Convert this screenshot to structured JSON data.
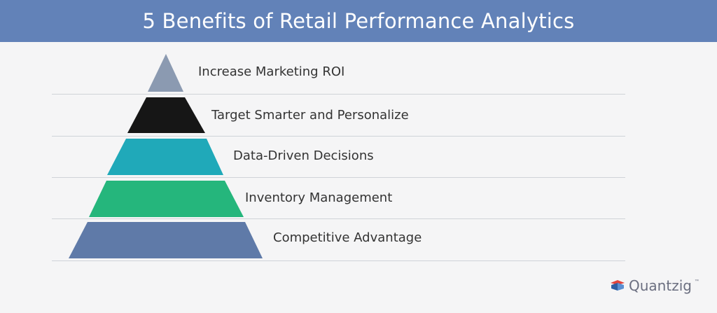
{
  "title": "5 Benefits of Retail Performance Analytics",
  "tiers": [
    {
      "label": "Increase Marketing ROI",
      "color": "#8b9ab1"
    },
    {
      "label": "Target Smarter and Personalize",
      "color": "#161616"
    },
    {
      "label": "Data-Driven Decisions",
      "color": "#20a9b9"
    },
    {
      "label": "Inventory Management",
      "color": "#25b67c"
    },
    {
      "label": "Competitive Advantage",
      "color": "#5f7aa8"
    }
  ],
  "colors": {
    "header": "#6282b8",
    "background": "#f5f5f6"
  },
  "logo": {
    "name": "Quantzig",
    "tm": "™",
    "icon": "quantzig-logo-icon"
  }
}
